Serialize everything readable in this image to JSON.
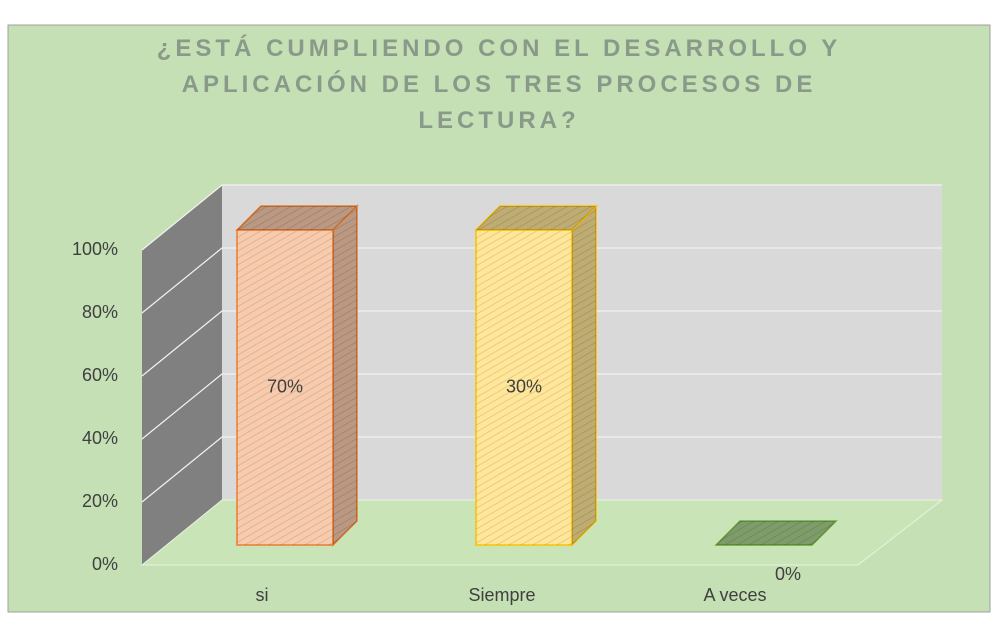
{
  "chart_data": {
    "type": "bar",
    "stacking": "percent",
    "three_d": true,
    "title": "¿ESTÁ CUMPLIENDO CON EL DESARROLLO Y APLICACIÓN DE LOS TRES PROCESOS DE LECTURA?",
    "categories": [
      "si",
      "Siempre",
      "A veces"
    ],
    "values": [
      70,
      30,
      0
    ],
    "value_labels": [
      "70%",
      "30%",
      "0%"
    ],
    "colors": [
      "#f8cbad",
      "#ffe699",
      "#a9d18e"
    ],
    "edge_colors": [
      "#ed7d31",
      "#ffc000",
      "#70ad47"
    ],
    "ylim": [
      0,
      100
    ],
    "yticks": [
      {
        "value": 0,
        "label": "0%"
      },
      {
        "value": 20,
        "label": "20%"
      },
      {
        "value": 40,
        "label": "40%"
      },
      {
        "value": 60,
        "label": "60%"
      },
      {
        "value": 80,
        "label": "80%"
      },
      {
        "value": 100,
        "label": "100%"
      }
    ],
    "grid": true
  }
}
